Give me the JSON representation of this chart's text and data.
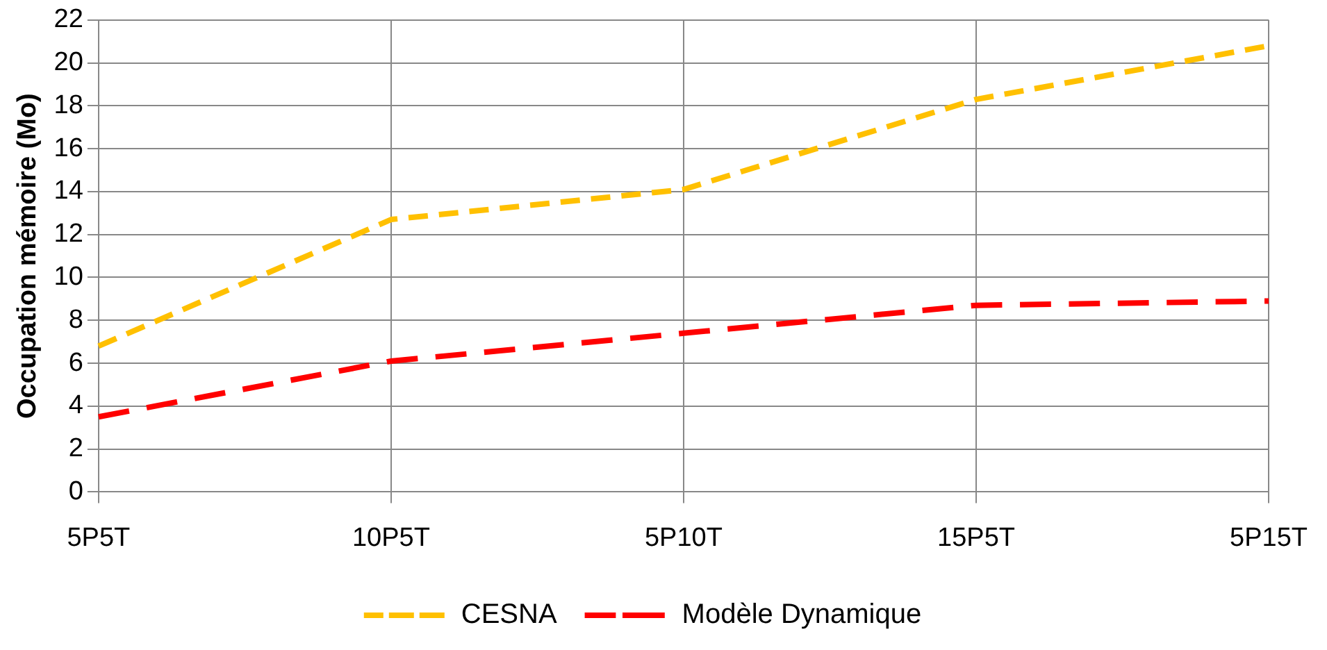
{
  "chart_data": {
    "type": "line",
    "ylabel": "Occupation mémoire (Mo)",
    "categories": [
      "5P5T",
      "10P5T",
      "5P10T",
      "15P5T",
      "5P15T"
    ],
    "series": [
      {
        "name": "CESNA",
        "color": "#ffc000",
        "values": [
          6.8,
          12.7,
          14.1,
          18.3,
          20.8
        ],
        "line_style": "dashed"
      },
      {
        "name": "Modèle Dynamique",
        "color": "#ff0000",
        "values": [
          3.5,
          6.1,
          7.4,
          8.7,
          8.9
        ],
        "line_style": "dashed"
      }
    ],
    "ylim": [
      0,
      22
    ],
    "yticks": [
      0,
      2,
      4,
      6,
      8,
      10,
      12,
      14,
      16,
      18,
      20,
      22
    ],
    "grid": true,
    "legend": "bottom",
    "marker": "none"
  }
}
